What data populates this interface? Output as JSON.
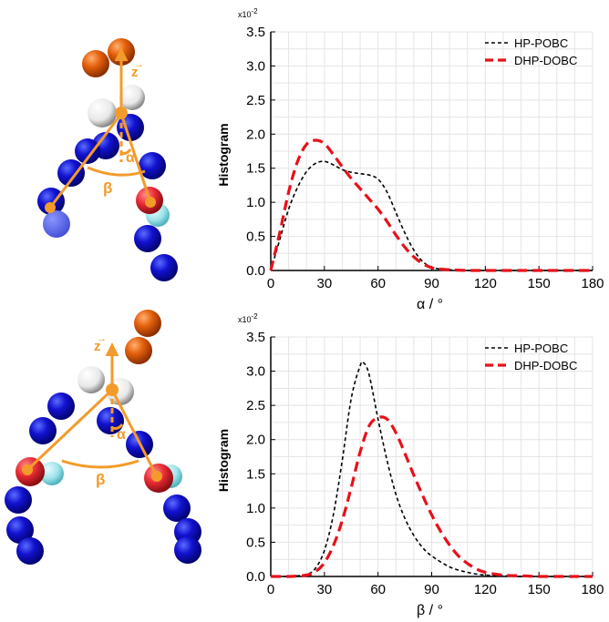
{
  "molecule_labels": {
    "top": {
      "z": "z",
      "alpha": "α",
      "beta": "β"
    },
    "bottom": {
      "z": "z",
      "alpha": "α",
      "beta": "β"
    }
  },
  "colors": {
    "grid": "#e4e4e4",
    "series_hp": "#000000",
    "series_dhp": "#e8101a",
    "orange": "#f39b2a",
    "bead_blue": "#0a0aa8",
    "bead_head": "#d94f08",
    "bead_red": "#e8313a",
    "bead_cyan": "#9fe3ea"
  },
  "chart_data": [
    {
      "type": "line",
      "exponent_label": "x10",
      "exponent_power": "-2",
      "xlabel": "α / °",
      "ylabel": "Histogram",
      "xlim": [
        0,
        180
      ],
      "ylim": [
        0,
        3.5
      ],
      "xticks": [
        "0",
        "30",
        "60",
        "90",
        "120",
        "150",
        "180"
      ],
      "yticks": [
        "0.0",
        "0.5",
        "1.0",
        "1.5",
        "2.0",
        "2.5",
        "3.0",
        "3.5"
      ],
      "grid": true,
      "legend_position": "top-right",
      "series": [
        {
          "name": "HP-POBC",
          "style": "dashed",
          "x": [
            0,
            5,
            10,
            15,
            20,
            25,
            30,
            35,
            40,
            45,
            50,
            55,
            60,
            65,
            70,
            75,
            80,
            85,
            90,
            95,
            100,
            110,
            120,
            130,
            140,
            150,
            160,
            170,
            180
          ],
          "y": [
            0.0,
            0.45,
            0.9,
            1.22,
            1.45,
            1.57,
            1.6,
            1.55,
            1.48,
            1.44,
            1.42,
            1.4,
            1.34,
            1.15,
            0.85,
            0.55,
            0.3,
            0.13,
            0.05,
            0.02,
            0.01,
            0.0,
            0.0,
            0.0,
            0.0,
            0.0,
            0.0,
            0.0,
            0.0
          ]
        },
        {
          "name": "DHP-DOBC",
          "style": "dashed-thick",
          "x": [
            0,
            5,
            10,
            15,
            20,
            25,
            30,
            35,
            40,
            45,
            50,
            55,
            60,
            65,
            70,
            75,
            80,
            85,
            90,
            95,
            100,
            110,
            120,
            130,
            140,
            150,
            160,
            170,
            180
          ],
          "y": [
            0.0,
            0.55,
            1.15,
            1.6,
            1.85,
            1.91,
            1.86,
            1.7,
            1.52,
            1.35,
            1.2,
            1.05,
            0.9,
            0.72,
            0.52,
            0.34,
            0.2,
            0.1,
            0.04,
            0.02,
            0.01,
            0.0,
            0.0,
            0.0,
            0.0,
            0.0,
            0.0,
            0.0,
            0.0
          ]
        }
      ]
    },
    {
      "type": "line",
      "exponent_label": "x10",
      "exponent_power": "-2",
      "xlabel": "β / °",
      "ylabel": "Histogram",
      "xlim": [
        0,
        180
      ],
      "ylim": [
        0,
        3.5
      ],
      "xticks": [
        "0",
        "30",
        "60",
        "90",
        "120",
        "150",
        "180"
      ],
      "yticks": [
        "0.0",
        "0.5",
        "1.0",
        "1.5",
        "2.0",
        "2.5",
        "3.0",
        "3.5"
      ],
      "grid": true,
      "legend_position": "top-right",
      "series": [
        {
          "name": "HP-POBC",
          "style": "dashed",
          "x": [
            0,
            10,
            20,
            25,
            30,
            35,
            40,
            45,
            50,
            52,
            55,
            60,
            65,
            70,
            75,
            80,
            85,
            90,
            100,
            110,
            120,
            130,
            140,
            150,
            160,
            170,
            180
          ],
          "y": [
            0.0,
            0.0,
            0.03,
            0.12,
            0.38,
            0.9,
            1.7,
            2.6,
            3.08,
            3.12,
            2.95,
            2.3,
            1.7,
            1.2,
            0.85,
            0.6,
            0.42,
            0.3,
            0.14,
            0.06,
            0.02,
            0.01,
            0.0,
            0.0,
            0.0,
            0.0,
            0.0
          ]
        },
        {
          "name": "DHP-DOBC",
          "style": "dashed-thick",
          "x": [
            0,
            10,
            20,
            25,
            30,
            35,
            40,
            45,
            50,
            55,
            60,
            65,
            70,
            75,
            80,
            85,
            90,
            95,
            100,
            105,
            110,
            115,
            120,
            130,
            140,
            150,
            160,
            170,
            180
          ],
          "y": [
            0.0,
            0.0,
            0.02,
            0.07,
            0.2,
            0.45,
            0.82,
            1.3,
            1.82,
            2.2,
            2.32,
            2.3,
            2.1,
            1.8,
            1.48,
            1.18,
            0.9,
            0.66,
            0.46,
            0.3,
            0.19,
            0.11,
            0.06,
            0.02,
            0.01,
            0.0,
            0.0,
            0.0,
            0.0
          ]
        }
      ]
    }
  ]
}
